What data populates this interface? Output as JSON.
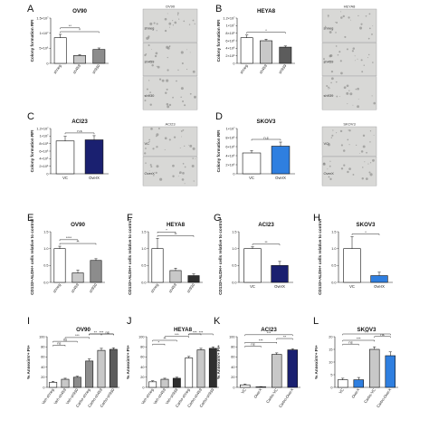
{
  "colors": {
    "white": "#ffffff",
    "grey_light": "#c8c8c8",
    "grey_mid": "#8c8c8c",
    "grey_dark": "#5c5c5c",
    "dark": "#2f2f2f",
    "black": "#111111",
    "blue": "#2f7fe0",
    "navy": "#1a2070",
    "micro_bg": "#d8d8d6",
    "micro_dot": "#7e7e7c"
  },
  "micrographs": [
    {
      "panel": "A",
      "title": "OV90",
      "labels": [
        "shneg",
        "sh459",
        "sh930"
      ]
    },
    {
      "panel": "B",
      "title": "HEYA8",
      "labels": [
        "shneg",
        "sh459",
        "sh939"
      ]
    },
    {
      "panel": "C",
      "title": "ACI23",
      "labels": [
        "VC",
        "OverX"
      ]
    },
    {
      "panel": "D",
      "title": "SKOV3",
      "labels": [
        "VC",
        "OverX"
      ]
    }
  ],
  "chart_data": [
    {
      "panel": "A",
      "type": "bar",
      "title": "OV90",
      "ylabel": "Colony formation RFI",
      "ylim": [
        0,
        15000000.0
      ],
      "ytick_labels": [
        "0",
        "5×10⁶",
        "1×10⁷",
        "1.5×10⁷"
      ],
      "categories": [
        "shneg",
        "sh459",
        "sh930"
      ],
      "values": [
        8500000.0,
        2600000.0,
        4600000.0
      ],
      "errors": [
        1100000.0,
        300000.0,
        500000.0
      ],
      "colors": [
        "white",
        "grey_light",
        "grey_mid"
      ],
      "rotate": true,
      "sig": [
        [
          "*",
          0,
          2
        ],
        [
          "**",
          0,
          1
        ]
      ]
    },
    {
      "panel": "B",
      "type": "bar",
      "title": "HEYA8",
      "ylabel": "Colony formation RFI",
      "ylim": [
        0,
        12000000.0
      ],
      "ytick_labels": [
        "0",
        "2×10⁶",
        "4×10⁶",
        "6×10⁶",
        "8×10⁶",
        "1×10⁷",
        "1.2×10⁷"
      ],
      "categories": [
        "shneg",
        "sh459",
        "sh939"
      ],
      "values": [
        6800000.0,
        6000000.0,
        4300000.0
      ],
      "errors": [
        700000.0,
        400000.0,
        300000.0
      ],
      "colors": [
        "white",
        "grey_light",
        "grey_dark"
      ],
      "rotate": true,
      "sig": [
        [
          "*",
          0,
          2
        ]
      ]
    },
    {
      "panel": "C",
      "type": "bar",
      "title": "ACI23",
      "ylabel": "Colony formation RFI",
      "ylim": [
        0,
        12000000.0
      ],
      "ytick_labels": [
        "0",
        "2×10⁶",
        "4×10⁶",
        "6×10⁶",
        "8×10⁶",
        "1×10⁷",
        "1.2×10⁷"
      ],
      "categories": [
        "VC",
        "OverX"
      ],
      "values": [
        8700000.0,
        9000000.0
      ],
      "errors": [
        1200000.0,
        1100000.0
      ],
      "colors": [
        "white",
        "navy"
      ],
      "rotate": false,
      "sig": [
        [
          "n.s",
          0,
          1
        ]
      ]
    },
    {
      "panel": "D",
      "type": "bar",
      "title": "SKOV3",
      "ylabel": "Colony formation RFI",
      "ylim": [
        0,
        10000000.0
      ],
      "ytick_labels": [
        "0",
        "2×10⁶",
        "4×10⁶",
        "6×10⁶",
        "8×10⁶",
        "1×10⁷"
      ],
      "categories": [
        "VC",
        "OverX"
      ],
      "values": [
        4600000.0,
        6100000.0
      ],
      "errors": [
        500000.0,
        900000.0
      ],
      "colors": [
        "white",
        "blue"
      ],
      "rotate": false,
      "sig": [
        [
          "n.s",
          0,
          1
        ]
      ]
    },
    {
      "panel": "E",
      "type": "bar",
      "title": "OV90",
      "ylabel": "CD133+ALDH+ cells relative to control",
      "ylim": [
        0,
        1.5
      ],
      "ytick_labels": [
        "0.0",
        "0.5",
        "1.0",
        "1.5"
      ],
      "categories": [
        "shneg",
        "sh459",
        "sh930"
      ],
      "values": [
        1.0,
        0.28,
        0.65
      ],
      "errors": [
        0.07,
        0.08,
        0.05
      ],
      "colors": [
        "white",
        "grey_light",
        "grey_mid"
      ],
      "rotate": true,
      "sig": [
        [
          "**",
          0,
          2
        ],
        [
          "****",
          0,
          1
        ]
      ]
    },
    {
      "panel": "F",
      "type": "bar",
      "title": "HEYA8",
      "ylabel": "CD133+ALDH+ cells relative to control",
      "ylim": [
        0,
        1.5
      ],
      "ytick_labels": [
        "0.0",
        "0.5",
        "1.0",
        "1.5"
      ],
      "categories": [
        "shneg",
        "sh459",
        "sh930"
      ],
      "values": [
        1.0,
        0.35,
        0.2
      ],
      "errors": [
        0.3,
        0.07,
        0.05
      ],
      "colors": [
        "white",
        "grey_light",
        "dark"
      ],
      "rotate": true,
      "sig": [
        [
          "**",
          0,
          2
        ],
        [
          "*",
          0,
          1
        ]
      ]
    },
    {
      "panel": "G",
      "type": "bar",
      "title": "ACI23",
      "ylabel": "CD133+ALDH+ cells relative to control",
      "ylim": [
        0,
        1.5
      ],
      "ytick_labels": [
        "0.0",
        "0.5",
        "1.0",
        "1.5"
      ],
      "categories": [
        "VC",
        "OverX"
      ],
      "values": [
        1.0,
        0.5
      ],
      "errors": [
        0.05,
        0.12
      ],
      "colors": [
        "white",
        "navy"
      ],
      "rotate": false,
      "sig": [
        [
          "**",
          0,
          1
        ]
      ]
    },
    {
      "panel": "H",
      "type": "bar",
      "title": "SKOV3",
      "ylabel": "CD133+ALDH+ cells relative to control",
      "ylim": [
        0,
        1.5
      ],
      "ytick_labels": [
        "0.0",
        "0.5",
        "1.0",
        "1.5"
      ],
      "categories": [
        "VC",
        "OverX"
      ],
      "values": [
        1.0,
        0.2
      ],
      "errors": [
        0.35,
        0.1
      ],
      "colors": [
        "white",
        "blue"
      ],
      "rotate": false,
      "sig": [
        [
          "*",
          0,
          1
        ]
      ]
    },
    {
      "panel": "I",
      "type": "bar",
      "title": "OV90",
      "ylabel": "% AnnexinV+ PI+",
      "ylim": [
        0,
        100
      ],
      "ytick_labels": [
        "0",
        "20",
        "40",
        "60",
        "80",
        "100"
      ],
      "categories": [
        "Veh-shneg",
        "Veh-sh459",
        "Veh-sh930",
        "Carbo-shneg",
        "Carbo-sh459",
        "Carbo-sh930"
      ],
      "values": [
        10,
        16,
        20,
        52,
        73,
        75
      ],
      "errors": [
        2,
        2,
        2,
        4,
        4,
        3
      ],
      "colors": [
        "white",
        "grey_light",
        "grey_mid",
        "grey_mid",
        "grey_light",
        "grey_dark"
      ],
      "rotate": true,
      "sig": [
        [
          "ns",
          0,
          1
        ],
        [
          "ns",
          0,
          2
        ],
        [
          "***",
          1,
          3
        ],
        [
          "**",
          3,
          4
        ],
        [
          "***",
          3,
          5
        ],
        [
          "ns",
          4,
          5
        ]
      ]
    },
    {
      "panel": "J",
      "type": "bar",
      "title": "HEYA8",
      "ylabel": "% AnnexinV+ PI+",
      "ylim": [
        0,
        100
      ],
      "ytick_labels": [
        "0",
        "20",
        "40",
        "60",
        "80",
        "100"
      ],
      "categories": [
        "Veh-shneg",
        "Veh-sh459",
        "Veh-sh939",
        "Carbo-shneg",
        "Carbo-sh459",
        "Carbo-sh939"
      ],
      "values": [
        11,
        16,
        18,
        58,
        74,
        77
      ],
      "errors": [
        2,
        2,
        2,
        3,
        3,
        3
      ],
      "colors": [
        "white",
        "grey_light",
        "dark",
        "white",
        "grey_light",
        "dark"
      ],
      "rotate": true,
      "sig": [
        [
          "*",
          0,
          1
        ],
        [
          "**",
          0,
          2
        ],
        [
          "***",
          1,
          3
        ],
        [
          "***",
          3,
          4
        ],
        [
          "***",
          3,
          5
        ]
      ]
    },
    {
      "panel": "K",
      "type": "bar",
      "title": "ACI23",
      "ylabel": "% AnnexinV+ PI+",
      "ylim": [
        0,
        100
      ],
      "ytick_labels": [
        "0",
        "20",
        "40",
        "60",
        "80",
        "100"
      ],
      "categories": [
        "VC",
        "OverX",
        "Carbo-VC",
        "Carbo-OverX"
      ],
      "values": [
        5,
        1,
        65,
        74
      ],
      "errors": [
        1.5,
        0.6,
        3,
        2
      ],
      "colors": [
        "white",
        "navy",
        "grey_light",
        "navy"
      ],
      "rotate": true,
      "sig": [
        [
          "ns",
          0,
          1
        ],
        [
          "***",
          0,
          2
        ],
        [
          "**",
          2,
          3
        ],
        [
          "***",
          0,
          3
        ]
      ]
    },
    {
      "panel": "L",
      "type": "bar",
      "title": "SKOV3",
      "ylabel": "% AnnexinV+ PI+",
      "ylim": [
        0,
        20
      ],
      "ytick_labels": [
        "0",
        "5",
        "10",
        "15",
        "20"
      ],
      "categories": [
        "VC",
        "OverX",
        "Carbo-VC",
        "Carbo-OverX"
      ],
      "values": [
        3,
        3,
        15,
        12.5
      ],
      "errors": [
        0.6,
        0.9,
        1,
        1.5
      ],
      "colors": [
        "white",
        "blue",
        "grey_light",
        "blue"
      ],
      "rotate": true,
      "sig": [
        [
          "ns",
          0,
          1
        ],
        [
          "***",
          0,
          2
        ],
        [
          "ns",
          2,
          3
        ],
        [
          "***",
          0,
          3
        ]
      ]
    }
  ]
}
